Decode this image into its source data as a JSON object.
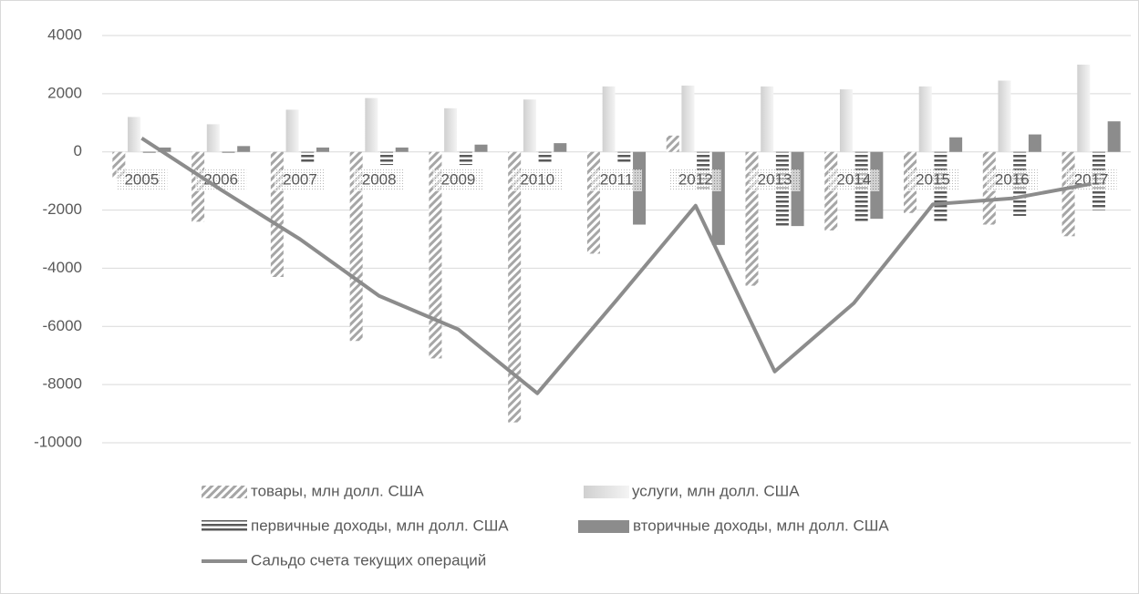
{
  "chart_data": {
    "type": "bar",
    "categories": [
      "2005",
      "2006",
      "2007",
      "2008",
      "2009",
      "2010",
      "2011",
      "2012",
      "2013",
      "2014",
      "2015",
      "2016",
      "2017"
    ],
    "series": [
      {
        "name": "товары, млн долл. США",
        "color": "#a6a6a6",
        "pattern": "hatch",
        "values": [
          -900,
          -2400,
          -4300,
          -6500,
          -7100,
          -9300,
          -3500,
          560,
          -4600,
          -2700,
          -2100,
          -2500,
          -2900
        ]
      },
      {
        "name": "услуги, млн долл. США",
        "color": "#e7e7e7",
        "pattern": "gradient",
        "values": [
          1200,
          950,
          1450,
          1850,
          1500,
          1800,
          2250,
          2280,
          2250,
          2150,
          2250,
          2450,
          3000
        ]
      },
      {
        "name": "первичные доходы, млн долл. США",
        "color": "#595959",
        "pattern": "stripes",
        "values": [
          -100,
          -100,
          -400,
          -450,
          -450,
          -400,
          -400,
          -1300,
          -2600,
          -2400,
          -2450,
          -2200,
          -2000
        ]
      },
      {
        "name": "вторичные доходы, млн долл. США",
        "color": "#8c8c8c",
        "pattern": "solid",
        "values": [
          150,
          200,
          150,
          150,
          250,
          300,
          -2500,
          -3200,
          -2550,
          -2300,
          500,
          600,
          1050
        ]
      },
      {
        "name": "Сальдо счета текущих операций",
        "color": "#8c8c8c",
        "type": "line",
        "values": [
          470,
          -1300,
          -3000,
          -4950,
          -6100,
          -8300,
          -5100,
          -1850,
          -7550,
          -5200,
          -1800,
          -1600,
          -1100
        ]
      }
    ],
    "ylim": [
      -10000,
      4000
    ],
    "yticks": [
      -10000,
      -8000,
      -6000,
      -4000,
      -2000,
      0,
      2000,
      4000
    ],
    "grid": true
  }
}
